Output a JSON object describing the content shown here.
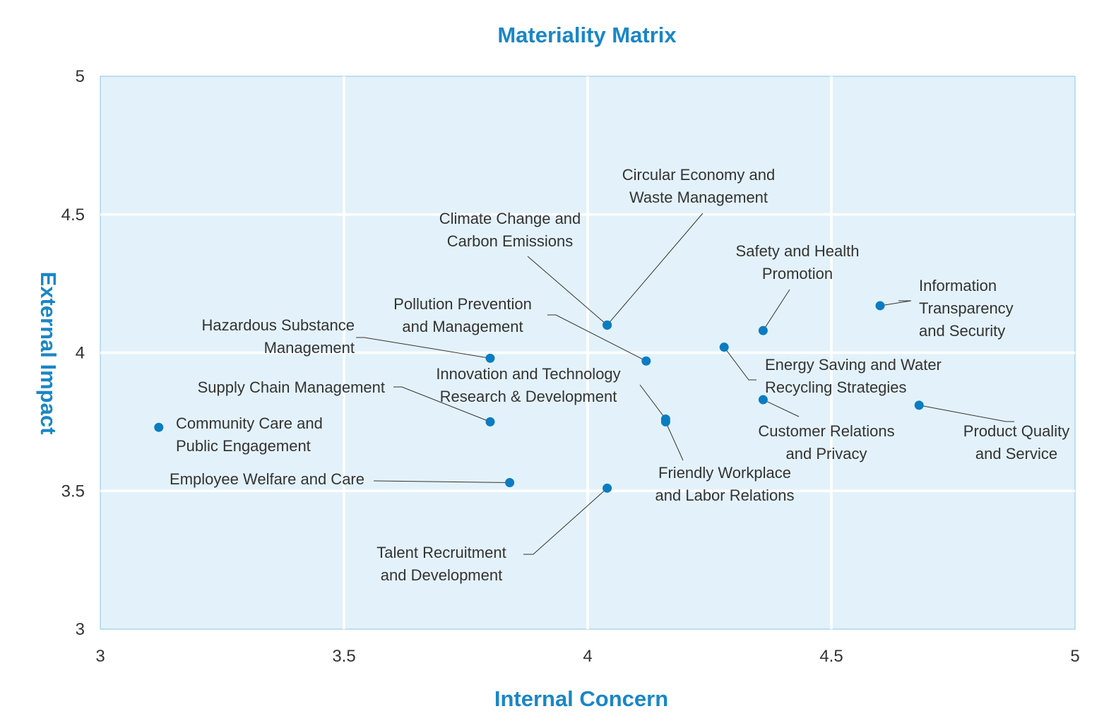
{
  "chart_data": {
    "type": "scatter",
    "title": "Materiality Matrix",
    "xlabel": "Internal Concern",
    "ylabel": "External Impact",
    "xlim": [
      3,
      5
    ],
    "ylim": [
      3,
      5
    ],
    "xticks": [
      "3",
      "3.5",
      "4",
      "4.5",
      "5"
    ],
    "yticks": [
      "3",
      "3.5",
      "4",
      "4.5",
      "5"
    ],
    "grid": true,
    "colors": {
      "point": "#0b7cc1",
      "plot_bg": "#e3f2fa",
      "grid": "#ffffff",
      "accent": "#1a86c7"
    },
    "points": [
      {
        "name": "Circular Economy and Waste Management",
        "label_lines": [
          "Circular Economy and",
          "Waste Management"
        ],
        "x": 4.04,
        "y": 4.1
      },
      {
        "name": "Climate Change and Carbon Emissions",
        "label_lines": [
          "Climate Change and",
          "Carbon Emissions"
        ],
        "x": 4.04,
        "y": 4.1
      },
      {
        "name": "Safety and Health Promotion",
        "label_lines": [
          "Safety and Health",
          "Promotion"
        ],
        "x": 4.36,
        "y": 4.08
      },
      {
        "name": "Information Transparency and Security",
        "label_lines": [
          "Information",
          "Transparency",
          "and Security"
        ],
        "x": 4.6,
        "y": 4.17
      },
      {
        "name": "Pollution Prevention and Management",
        "label_lines": [
          "Pollution Prevention",
          "and Management"
        ],
        "x": 4.12,
        "y": 3.97
      },
      {
        "name": "Hazardous Substance Management",
        "label_lines": [
          "Hazardous Substance",
          "Management"
        ],
        "x": 3.8,
        "y": 3.98
      },
      {
        "name": "Energy Saving and Water Recycling Strategies",
        "label_lines": [
          "Energy Saving and Water",
          "Recycling Strategies"
        ],
        "x": 4.28,
        "y": 4.02
      },
      {
        "name": "Innovation and Technology Research & Development",
        "label_lines": [
          "Innovation and Technology",
          "Research & Development"
        ],
        "x": 4.16,
        "y": 3.76
      },
      {
        "name": "Supply Chain Management",
        "label_lines": [
          "Supply Chain Management"
        ],
        "x": 3.8,
        "y": 3.75
      },
      {
        "name": "Customer Relations and Privacy",
        "label_lines": [
          "Customer Relations",
          "and Privacy"
        ],
        "x": 4.36,
        "y": 3.83
      },
      {
        "name": "Product Quality and Service",
        "label_lines": [
          "Product Quality",
          "and Service"
        ],
        "x": 4.68,
        "y": 3.81
      },
      {
        "name": "Community Care and Public Engagement",
        "label_lines": [
          "Community Care and",
          "Public Engagement"
        ],
        "x": 3.12,
        "y": 3.73
      },
      {
        "name": "Friendly Workplace and Labor Relations",
        "label_lines": [
          "Friendly Workplace",
          "and Labor Relations"
        ],
        "x": 4.16,
        "y": 3.75
      },
      {
        "name": "Employee Welfare and Care",
        "label_lines": [
          "Employee Welfare and Care"
        ],
        "x": 3.84,
        "y": 3.53
      },
      {
        "name": "Talent Recruitment and Development",
        "label_lines": [
          "Talent Recruitment",
          "and Development"
        ],
        "x": 4.04,
        "y": 3.51
      }
    ]
  }
}
